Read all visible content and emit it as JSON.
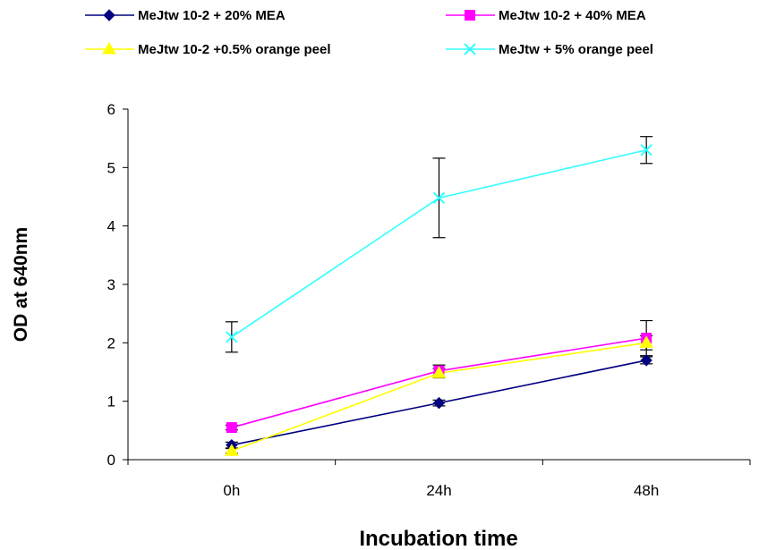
{
  "chart_data": {
    "type": "line",
    "title": "",
    "xlabel": "Incubation time",
    "ylabel": "OD at 640nm",
    "categories": [
      "0h",
      "24h",
      "48h"
    ],
    "ylim": [
      0,
      6
    ],
    "yticks": [
      0,
      1,
      2,
      3,
      4,
      5,
      6
    ],
    "grid": false,
    "legend_position": "top",
    "series": [
      {
        "name": "MeJtw 10-2 + 20% MEA",
        "color": "#000080",
        "marker": "diamond",
        "values": [
          0.25,
          0.97,
          1.7
        ],
        "errors": [
          0.05,
          0.05,
          0.06
        ]
      },
      {
        "name": "MeJtw 10-2 + 40% MEA",
        "color": "#ff00ff",
        "marker": "square",
        "values": [
          0.55,
          1.52,
          2.08
        ],
        "errors": [
          0.04,
          0.1,
          0.3
        ]
      },
      {
        "name": "MeJtw 10-2 +0.5% orange peel",
        "color": "#ffff00",
        "marker": "triangle",
        "values": [
          0.15,
          1.48,
          2.0
        ],
        "errors": [
          0.04,
          0.08,
          0.12
        ]
      },
      {
        "name": "MeJtw + 5% orange peel",
        "color": "#33ffff",
        "marker": "x",
        "values": [
          2.1,
          4.48,
          5.3
        ],
        "errors": [
          0.26,
          0.68,
          0.23
        ]
      }
    ]
  }
}
